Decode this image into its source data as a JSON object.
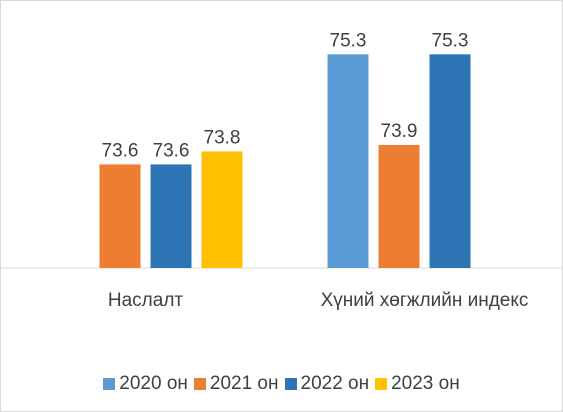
{
  "chart_data": {
    "type": "bar",
    "categories": [
      "Наслалт",
      "Хүний хөгжлийн индекс"
    ],
    "series": [
      {
        "name": "2020 он",
        "color": "#5b9bd5",
        "values": [
          null,
          75.3
        ]
      },
      {
        "name": "2021 он",
        "color": "#ed7d31",
        "values": [
          73.6,
          73.9
        ]
      },
      {
        "name": "2022 он",
        "color": "#2e75b6",
        "values": [
          73.6,
          75.3
        ]
      },
      {
        "name": "2023 он",
        "color": "#ffc000",
        "values": [
          73.8,
          null
        ]
      }
    ],
    "ylim": [
      72,
      76
    ],
    "grid": false,
    "legend": "bottom"
  }
}
